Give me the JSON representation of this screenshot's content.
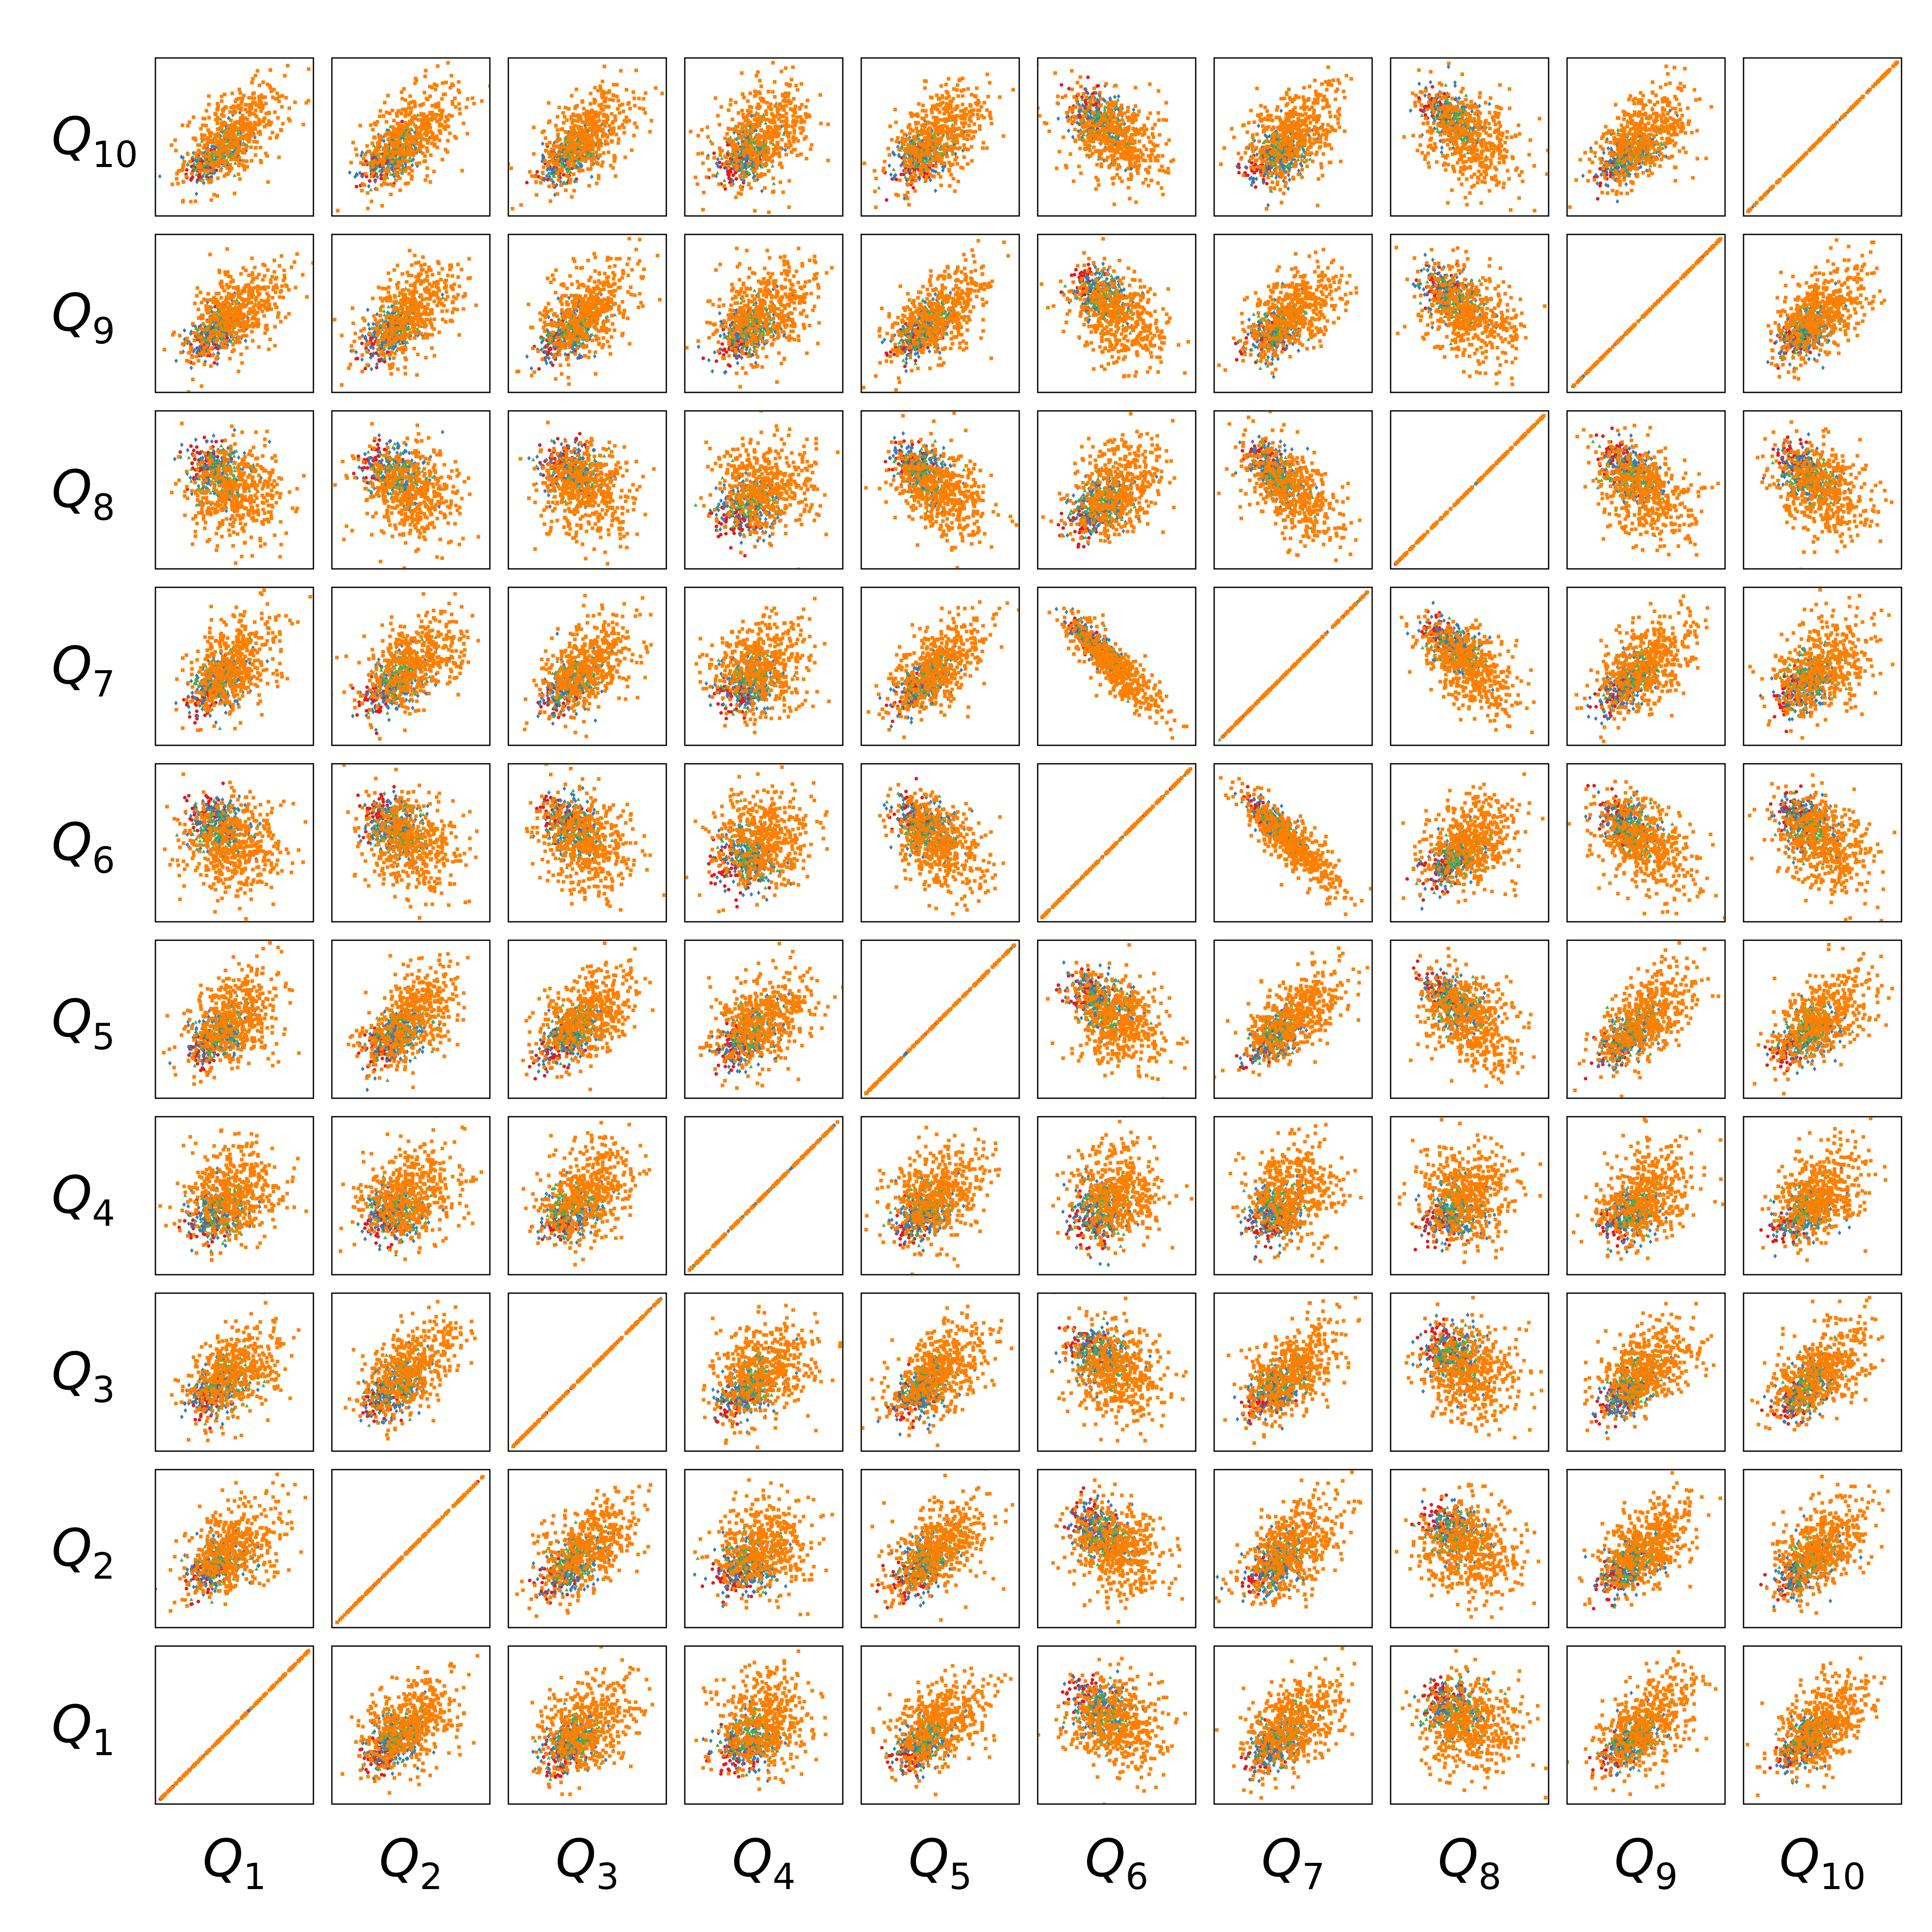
{
  "chart_data": {
    "type": "scatter",
    "subtype": "pairwise scatter matrix",
    "variables": [
      "Q1",
      "Q2",
      "Q3",
      "Q4",
      "Q5",
      "Q6",
      "Q7",
      "Q8",
      "Q9",
      "Q10"
    ],
    "row_labels_top_to_bottom": [
      {
        "base": "Q",
        "sub": "10"
      },
      {
        "base": "Q",
        "sub": "9"
      },
      {
        "base": "Q",
        "sub": "8"
      },
      {
        "base": "Q",
        "sub": "7"
      },
      {
        "base": "Q",
        "sub": "6"
      },
      {
        "base": "Q",
        "sub": "5"
      },
      {
        "base": "Q",
        "sub": "4"
      },
      {
        "base": "Q",
        "sub": "3"
      },
      {
        "base": "Q",
        "sub": "2"
      },
      {
        "base": "Q",
        "sub": "1"
      }
    ],
    "column_labels_left_to_right": [
      {
        "base": "Q",
        "sub": "1"
      },
      {
        "base": "Q",
        "sub": "2"
      },
      {
        "base": "Q",
        "sub": "3"
      },
      {
        "base": "Q",
        "sub": "4"
      },
      {
        "base": "Q",
        "sub": "5"
      },
      {
        "base": "Q",
        "sub": "6"
      },
      {
        "base": "Q",
        "sub": "7"
      },
      {
        "base": "Q",
        "sub": "8"
      },
      {
        "base": "Q",
        "sub": "9"
      },
      {
        "base": "Q",
        "sub": "10"
      }
    ],
    "diagonal": "identity line (variable plotted against itself)",
    "correlation_hint": {
      "Q1": [
        1.0,
        0.4,
        0.4,
        0.1,
        0.4,
        -0.1,
        0.45,
        -0.05,
        0.5,
        0.5
      ],
      "Q2": [
        0.4,
        1.0,
        0.45,
        0.15,
        0.45,
        -0.15,
        0.45,
        -0.1,
        0.5,
        0.5
      ],
      "Q3": [
        0.4,
        0.45,
        1.0,
        0.3,
        0.45,
        -0.2,
        0.5,
        -0.1,
        0.5,
        0.5
      ],
      "Q4": [
        0.1,
        0.15,
        0.3,
        1.0,
        0.3,
        0.0,
        0.1,
        0.0,
        0.3,
        0.35
      ],
      "Q5": [
        0.4,
        0.45,
        0.45,
        0.3,
        1.0,
        -0.3,
        0.6,
        -0.4,
        0.55,
        0.45
      ],
      "Q6": [
        -0.1,
        -0.15,
        -0.2,
        0.0,
        -0.3,
        1.0,
        -0.85,
        0.3,
        -0.35,
        -0.3
      ],
      "Q7": [
        0.45,
        0.45,
        0.5,
        0.1,
        0.6,
        -0.85,
        1.0,
        -0.55,
        0.5,
        0.35
      ],
      "Q8": [
        -0.05,
        -0.1,
        -0.1,
        0.0,
        -0.4,
        0.3,
        -0.55,
        1.0,
        -0.4,
        -0.35
      ],
      "Q9": [
        0.5,
        0.5,
        0.5,
        0.3,
        0.55,
        -0.35,
        0.5,
        -0.4,
        1.0,
        0.5
      ],
      "Q10": [
        0.5,
        0.5,
        0.5,
        0.35,
        0.45,
        -0.3,
        0.35,
        -0.35,
        0.5,
        1.0
      ]
    },
    "series": [
      {
        "color": "#e41a1c",
        "marker": "circle",
        "points_per_panel": 150
      },
      {
        "color": "#377eb8",
        "marker": "diamond",
        "points_per_panel": 380
      },
      {
        "color": "#4daf4a",
        "marker": "triangle",
        "points_per_panel": 260
      },
      {
        "color": "#ff7f00",
        "marker": "square",
        "points_per_panel": 900
      }
    ],
    "grid": false,
    "ticks": false,
    "legend": "none"
  }
}
